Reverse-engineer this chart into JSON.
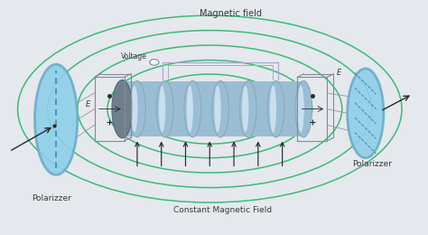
{
  "bg_color": "#e5e8ec",
  "green_color": "#3dba7a",
  "blue_disk_color": "#8ecfea",
  "blue_disk_edge": "#6aaec8",
  "solenoid_body": "#9bbdd4",
  "solenoid_dark": "#707f8c",
  "solenoid_highlight": "#ddeef8",
  "solenoid_ring_edge": "#8aaabb",
  "arrow_color": "#2a2a2a",
  "text_color": "#3a3a3a",
  "wire_color": "#aaaacc",
  "box_color": "#888899",
  "label_magnetic_field": "Magnetic field",
  "label_voltage": "Voltage",
  "label_e_left": "E",
  "label_e_right": "E",
  "label_polarizzer_left": "Polarizzer",
  "label_polarizzer_right": "Polarizzer",
  "label_constant": "Constant Magnetic Field"
}
